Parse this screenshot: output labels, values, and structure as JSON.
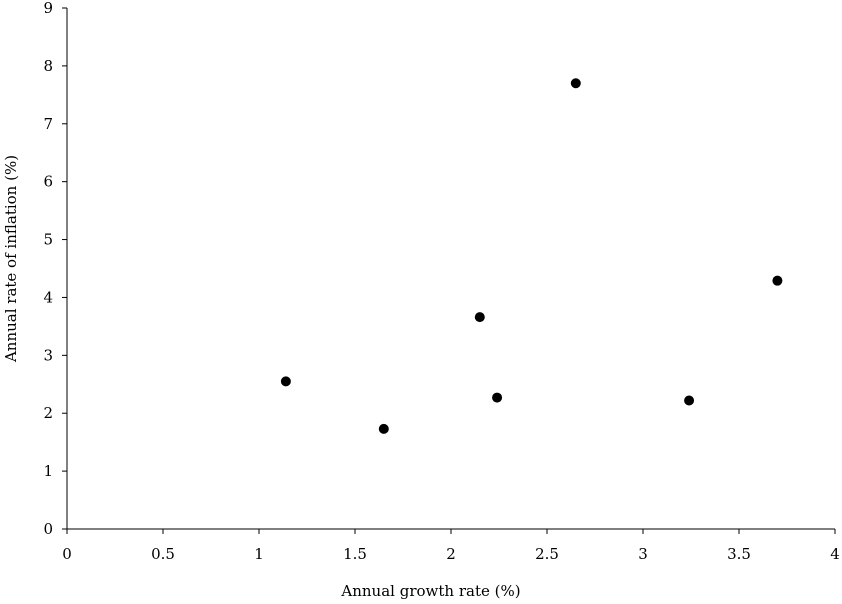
{
  "chart_data": {
    "type": "scatter",
    "title": "",
    "xlabel": "Annual growth rate (%)",
    "ylabel": "Annual rate of inflation (%)",
    "xlim": [
      0,
      4
    ],
    "ylim": [
      0,
      9
    ],
    "x_ticks": [
      "0",
      "0.5",
      "1",
      "1.5",
      "2",
      "2.5",
      "3",
      "3.5",
      "4"
    ],
    "y_ticks": [
      "0",
      "1",
      "2",
      "3",
      "4",
      "5",
      "6",
      "7",
      "8",
      "9"
    ],
    "grid": false,
    "legend": "none",
    "marker_color": "#000000",
    "points": [
      {
        "x": 1.14,
        "y": 2.55
      },
      {
        "x": 1.65,
        "y": 1.73
      },
      {
        "x": 2.15,
        "y": 3.66
      },
      {
        "x": 2.24,
        "y": 2.27
      },
      {
        "x": 2.65,
        "y": 7.7
      },
      {
        "x": 3.24,
        "y": 2.22
      },
      {
        "x": 3.7,
        "y": 4.29
      }
    ]
  }
}
